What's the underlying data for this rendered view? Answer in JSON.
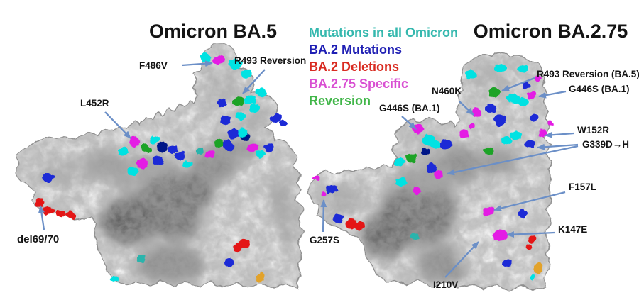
{
  "figure": {
    "left_panel": {
      "title": "Omicron BA.5",
      "labels": {
        "f486v": "F486V",
        "r493_reversion": "R493 Reversion",
        "l452r": "L452R",
        "del69_70": "del69/70"
      }
    },
    "right_panel": {
      "title": "Omicron BA.2.75",
      "labels": {
        "n460k": "N460K",
        "g446s_left": "G446S (BA.1)",
        "r493_reversion_ba5": "R493 Reversion (BA.5)",
        "g446s_right": "G446S (BA.1)",
        "w152r": "W152R",
        "g339d_h": "G339D→H",
        "f157l": "F157L",
        "k147e": "K147E",
        "g257s": "G257S",
        "i210v": "I210V"
      }
    },
    "legend": {
      "items": [
        {
          "label": "Mutations in all Omicron",
          "color": "#35b8ae"
        },
        {
          "label": "BA.2 Mutations",
          "color": "#1f1fb4"
        },
        {
          "label": "BA.2 Deletions",
          "color": "#d92b21"
        },
        {
          "label": "BA.2.75 Specific",
          "color": "#d94fd2"
        },
        {
          "label": "Reversion",
          "color": "#41b649"
        }
      ]
    },
    "palette": {
      "mutation_all_omicron": "#00e2e2",
      "mutation_all_omicron_dark": "#2ab4ac",
      "mutation_ba2": "#1d2ad6",
      "mutation_ba2_dark": "#001387",
      "mutation_ba275": "#e41fe4",
      "mutation_reversion": "#1fa328",
      "deletion_ba2": "#e41414",
      "other_site": "#e2a22b",
      "arrow": "#6b8fc7",
      "surface_outline": "#8f8f8f"
    }
  }
}
